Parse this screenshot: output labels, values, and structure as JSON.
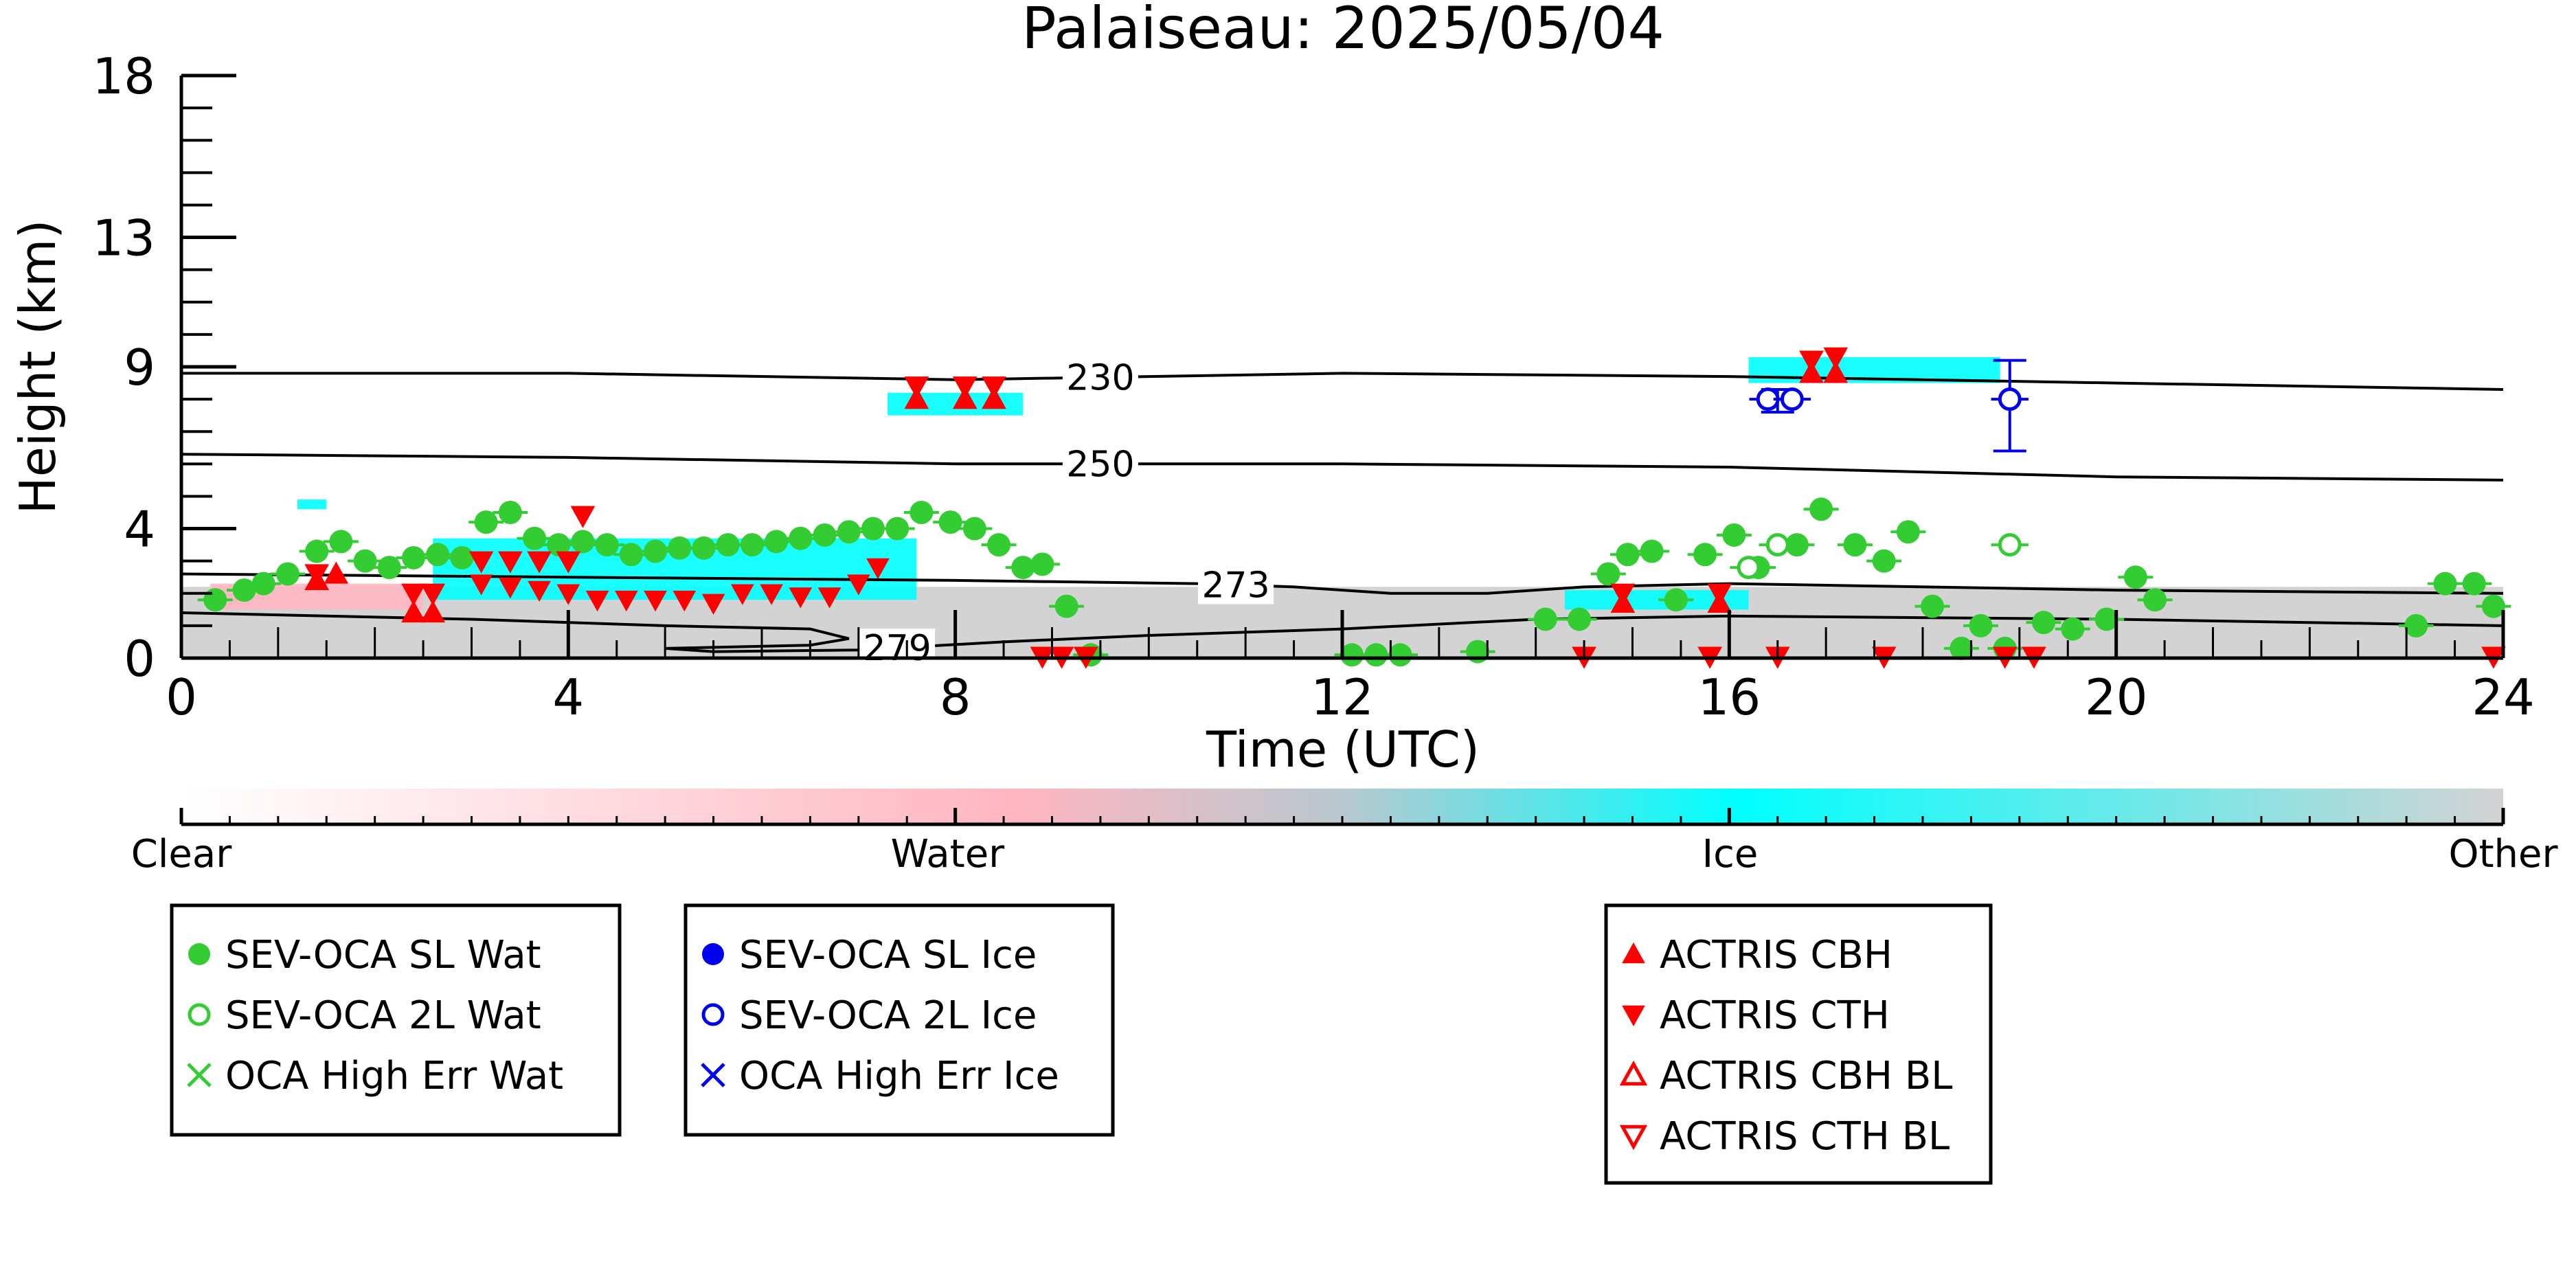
{
  "chart_data": {
    "type": "scatter",
    "title": "Palaiseau: 2025/05/04",
    "xlabel": "Time (UTC)",
    "ylabel": "Height (km)",
    "xlim": [
      0,
      24
    ],
    "ylim": [
      0,
      18
    ],
    "x_ticks": [
      0,
      4,
      8,
      12,
      16,
      20,
      24
    ],
    "y_ticks": [
      0,
      4,
      9,
      13,
      18
    ],
    "grid": false,
    "colors": {
      "water": "#ffb6c1",
      "ice": "#00ffff",
      "other": "#d3d3d3",
      "sev_wat": "#33cc33",
      "sev_ice": "#0000ee",
      "actris": "#ff0000"
    },
    "colorbar": {
      "labels": [
        "Clear",
        "Water",
        "Ice",
        "Other"
      ],
      "positions": [
        0,
        0.33,
        0.667,
        1
      ]
    },
    "isotherms": [
      {
        "label": "230",
        "label_x": 9.5,
        "points": [
          [
            0,
            8.8
          ],
          [
            4,
            8.8
          ],
          [
            8,
            8.6
          ],
          [
            12,
            8.8
          ],
          [
            16,
            8.7
          ],
          [
            20,
            8.5
          ],
          [
            24,
            8.3
          ]
        ]
      },
      {
        "label": "250",
        "label_x": 9.5,
        "points": [
          [
            0,
            6.3
          ],
          [
            4,
            6.2
          ],
          [
            8,
            6.0
          ],
          [
            12,
            6.0
          ],
          [
            16,
            5.9
          ],
          [
            20,
            5.6
          ],
          [
            24,
            5.5
          ]
        ]
      },
      {
        "label": "273",
        "label_x": 10.9,
        "points": [
          [
            0,
            2.6
          ],
          [
            4,
            2.5
          ],
          [
            8,
            2.4
          ],
          [
            10.5,
            2.3
          ],
          [
            11.5,
            2.2
          ],
          [
            12.5,
            2.0
          ],
          [
            13.5,
            2.0
          ],
          [
            14.5,
            2.2
          ],
          [
            16,
            2.3
          ],
          [
            20,
            2.1
          ],
          [
            24,
            2.0
          ]
        ]
      },
      {
        "label": "279",
        "label_x": 7.4,
        "points": [
          [
            0,
            1.4
          ],
          [
            3,
            1.2
          ],
          [
            5,
            1.0
          ],
          [
            6.5,
            0.9
          ],
          [
            6.9,
            0.6
          ],
          [
            6.5,
            0.4
          ],
          [
            5,
            0.3
          ],
          [
            5.5,
            0.2
          ],
          [
            7,
            0.25
          ],
          [
            8.5,
            0.5
          ],
          [
            10,
            0.7
          ],
          [
            12,
            0.9
          ],
          [
            14,
            1.2
          ],
          [
            16,
            1.3
          ],
          [
            20,
            1.2
          ],
          [
            24,
            1.0
          ]
        ]
      }
    ],
    "cloudnet_regions": [
      {
        "class": "other",
        "x": [
          0,
          24
        ],
        "y": [
          0,
          2.2
        ]
      },
      {
        "class": "ice",
        "x": [
          2.6,
          7.6
        ],
        "y": [
          1.8,
          3.7
        ]
      },
      {
        "class": "ice",
        "x": [
          7.3,
          8.7
        ],
        "y": [
          7.5,
          8.2
        ]
      },
      {
        "class": "ice",
        "x": [
          16.2,
          18.8
        ],
        "y": [
          8.5,
          9.3
        ]
      },
      {
        "class": "ice",
        "x": [
          1.2,
          1.5
        ],
        "y": [
          4.6,
          4.9
        ]
      },
      {
        "class": "ice",
        "x": [
          14.3,
          16.2
        ],
        "y": [
          1.5,
          2.1
        ]
      },
      {
        "class": "water",
        "x": [
          0.3,
          2.5
        ],
        "y": [
          1.5,
          2.3
        ]
      }
    ],
    "series": [
      {
        "name": "SEV-OCA SL Wat",
        "x": [
          0.35,
          0.65,
          0.85,
          1.1,
          1.4,
          1.65,
          1.9,
          2.15,
          2.4,
          2.65,
          2.9,
          3.15,
          3.4,
          3.65,
          3.9,
          4.15,
          4.4,
          4.65,
          4.9,
          5.15,
          5.4,
          5.65,
          5.9,
          6.15,
          6.4,
          6.65,
          6.9,
          7.15,
          7.4,
          7.65,
          7.95,
          8.2,
          8.45,
          8.7,
          8.9,
          9.15,
          9.4,
          12.1,
          12.35,
          12.6,
          13.4,
          14.1,
          14.45,
          14.75,
          14.95,
          15.2,
          15.45,
          15.75,
          16.05,
          16.3,
          16.7,
          16.95,
          17.3,
          17.6,
          17.85,
          18.1,
          18.4,
          18.6,
          18.85,
          19.25,
          19.55,
          19.9,
          20.2,
          20.4,
          23.1,
          23.4,
          23.7,
          23.9
        ],
        "y": [
          1.8,
          2.1,
          2.3,
          2.6,
          3.3,
          3.6,
          3.0,
          2.8,
          3.1,
          3.2,
          3.1,
          4.2,
          4.5,
          3.7,
          3.5,
          3.6,
          3.5,
          3.2,
          3.3,
          3.4,
          3.4,
          3.5,
          3.5,
          3.6,
          3.7,
          3.8,
          3.9,
          4.0,
          4.0,
          4.5,
          4.2,
          4.0,
          3.5,
          2.8,
          2.9,
          1.6,
          0.1,
          0.1,
          0.1,
          0.1,
          0.2,
          1.2,
          1.2,
          2.6,
          3.2,
          3.3,
          1.8,
          3.2,
          3.8,
          2.8,
          3.5,
          4.6,
          3.5,
          3.0,
          3.9,
          1.6,
          0.3,
          1.0,
          0.3,
          1.1,
          0.9,
          1.2,
          2.5,
          1.8,
          1.0,
          2.3,
          2.3,
          1.6
        ]
      },
      {
        "name": "SEV-OCA 2L Wat",
        "x": [
          16.2,
          16.5,
          18.9
        ],
        "y": [
          2.8,
          3.5,
          3.5
        ]
      },
      {
        "name": "OCA High Err Wat",
        "x": [],
        "y": []
      },
      {
        "name": "SEV-OCA SL Ice",
        "x": [],
        "y": []
      },
      {
        "name": "SEV-OCA 2L Ice",
        "x": [
          16.4,
          16.65,
          18.9
        ],
        "y": [
          8.0,
          8.0,
          8.0
        ]
      },
      {
        "name": "OCA High Err Ice",
        "x": [],
        "y": []
      },
      {
        "name": "ACTRIS CBH",
        "x": [
          1.4,
          1.6,
          2.4,
          2.6,
          7.6,
          8.1,
          8.4,
          16.85,
          17.1,
          14.9,
          15.9
        ],
        "y": [
          2.4,
          2.6,
          1.4,
          1.4,
          8.0,
          8.0,
          8.0,
          8.8,
          8.8,
          1.7,
          1.7
        ]
      },
      {
        "name": "ACTRIS CTH",
        "x": [
          1.4,
          2.4,
          2.6,
          3.1,
          3.4,
          3.7,
          4.0,
          7.6,
          8.1,
          8.4,
          16.85,
          17.1,
          14.9,
          15.9,
          4.15,
          8.9,
          9.1,
          9.35,
          14.5,
          15.8,
          16.5,
          17.6,
          18.85,
          19.15,
          23.9
        ],
        "y": [
          2.6,
          2.0,
          2.0,
          3.0,
          3.0,
          3.0,
          3.0,
          8.4,
          8.4,
          8.4,
          9.2,
          9.3,
          2.0,
          2.0,
          4.4,
          0.05,
          0.05,
          0.05,
          0.05,
          0.05,
          0.05,
          0.05,
          0.05,
          0.05,
          0.05
        ]
      },
      {
        "name": "ACTRIS CBH BL",
        "x": [],
        "y": []
      },
      {
        "name": "ACTRIS CTH BL",
        "x": [],
        "y": []
      }
    ],
    "row_triangles_cbh": {
      "x": [
        3.1,
        3.4,
        3.7,
        4.0,
        4.3,
        4.6,
        4.9,
        5.2,
        5.5,
        5.8,
        6.1,
        6.4,
        6.7,
        7.0,
        7.2
      ],
      "y": [
        2.3,
        2.2,
        2.1,
        2.0,
        1.8,
        1.8,
        1.8,
        1.8,
        1.7,
        2.0,
        2.0,
        1.9,
        1.9,
        2.3,
        2.8
      ]
    },
    "error_bars": [
      {
        "series": "SEV-OCA 2L Ice",
        "x": 18.9,
        "y": 8.0,
        "y_low": 6.4,
        "y_high": 9.2
      },
      {
        "series": "SEV-OCA 2L Ice",
        "x": 16.5,
        "y": 8.0,
        "y_low": 7.6,
        "y_high": 8.3
      }
    ]
  },
  "legends": [
    {
      "items": [
        {
          "marker": "filled-circle",
          "color": "#33cc33",
          "label": "SEV-OCA SL Wat"
        },
        {
          "marker": "open-circle",
          "color": "#33cc33",
          "label": "SEV-OCA 2L Wat"
        },
        {
          "marker": "cross",
          "color": "#33cc33",
          "label": "OCA High Err Wat"
        }
      ]
    },
    {
      "items": [
        {
          "marker": "filled-circle",
          "color": "#0000ee",
          "label": "SEV-OCA SL Ice"
        },
        {
          "marker": "open-circle",
          "color": "#0000ee",
          "label": "SEV-OCA 2L Ice"
        },
        {
          "marker": "cross",
          "color": "#0000ee",
          "label": "OCA High Err Ice"
        }
      ]
    },
    {
      "items": [
        {
          "marker": "filled-up-triangle",
          "color": "#ff0000",
          "label": "ACTRIS CBH"
        },
        {
          "marker": "filled-down-triangle",
          "color": "#ff0000",
          "label": "ACTRIS CTH"
        },
        {
          "marker": "open-up-triangle",
          "color": "#ff0000",
          "label": "ACTRIS CBH BL"
        },
        {
          "marker": "open-down-triangle",
          "color": "#ff0000",
          "label": "ACTRIS CTH BL"
        }
      ]
    }
  ]
}
